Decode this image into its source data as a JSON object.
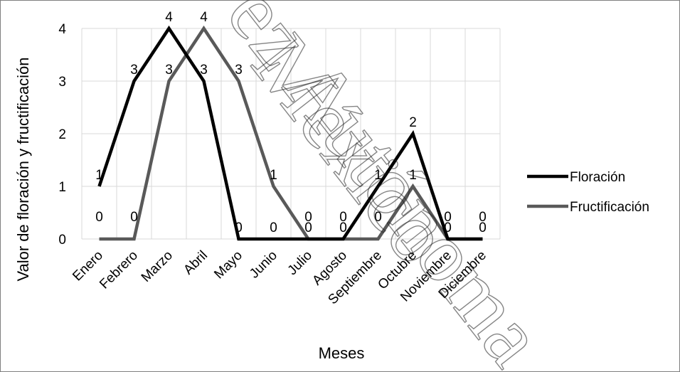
{
  "chart_data": {
    "type": "line",
    "categories": [
      "Enero",
      "Febrero",
      "Marzo",
      "Abril",
      "Mayo",
      "Junio",
      "Julio",
      "Agosto",
      "Septiembre",
      "Octubre",
      "Noviembre",
      "Diciembre"
    ],
    "series": [
      {
        "name": "Floración",
        "values": [
          1,
          3,
          4,
          3,
          0,
          0,
          0,
          0,
          1,
          2,
          0,
          0
        ],
        "color": "#000000"
      },
      {
        "name": "Fructificación",
        "values": [
          0,
          0,
          3,
          4,
          3,
          1,
          0,
          0,
          0,
          1,
          0,
          0
        ],
        "color": "#595959"
      }
    ],
    "xlabel": "Meses",
    "ylabel": "Valor de floración y fructificación",
    "ylim": [
      0,
      4
    ],
    "yticks": [
      "0",
      "1",
      "2",
      "3",
      "4"
    ],
    "grid": true,
    "legend": "right",
    "data_labels": true
  },
  "watermark": {
    "line1": "ez Autónoma",
    "line2": "México"
  }
}
